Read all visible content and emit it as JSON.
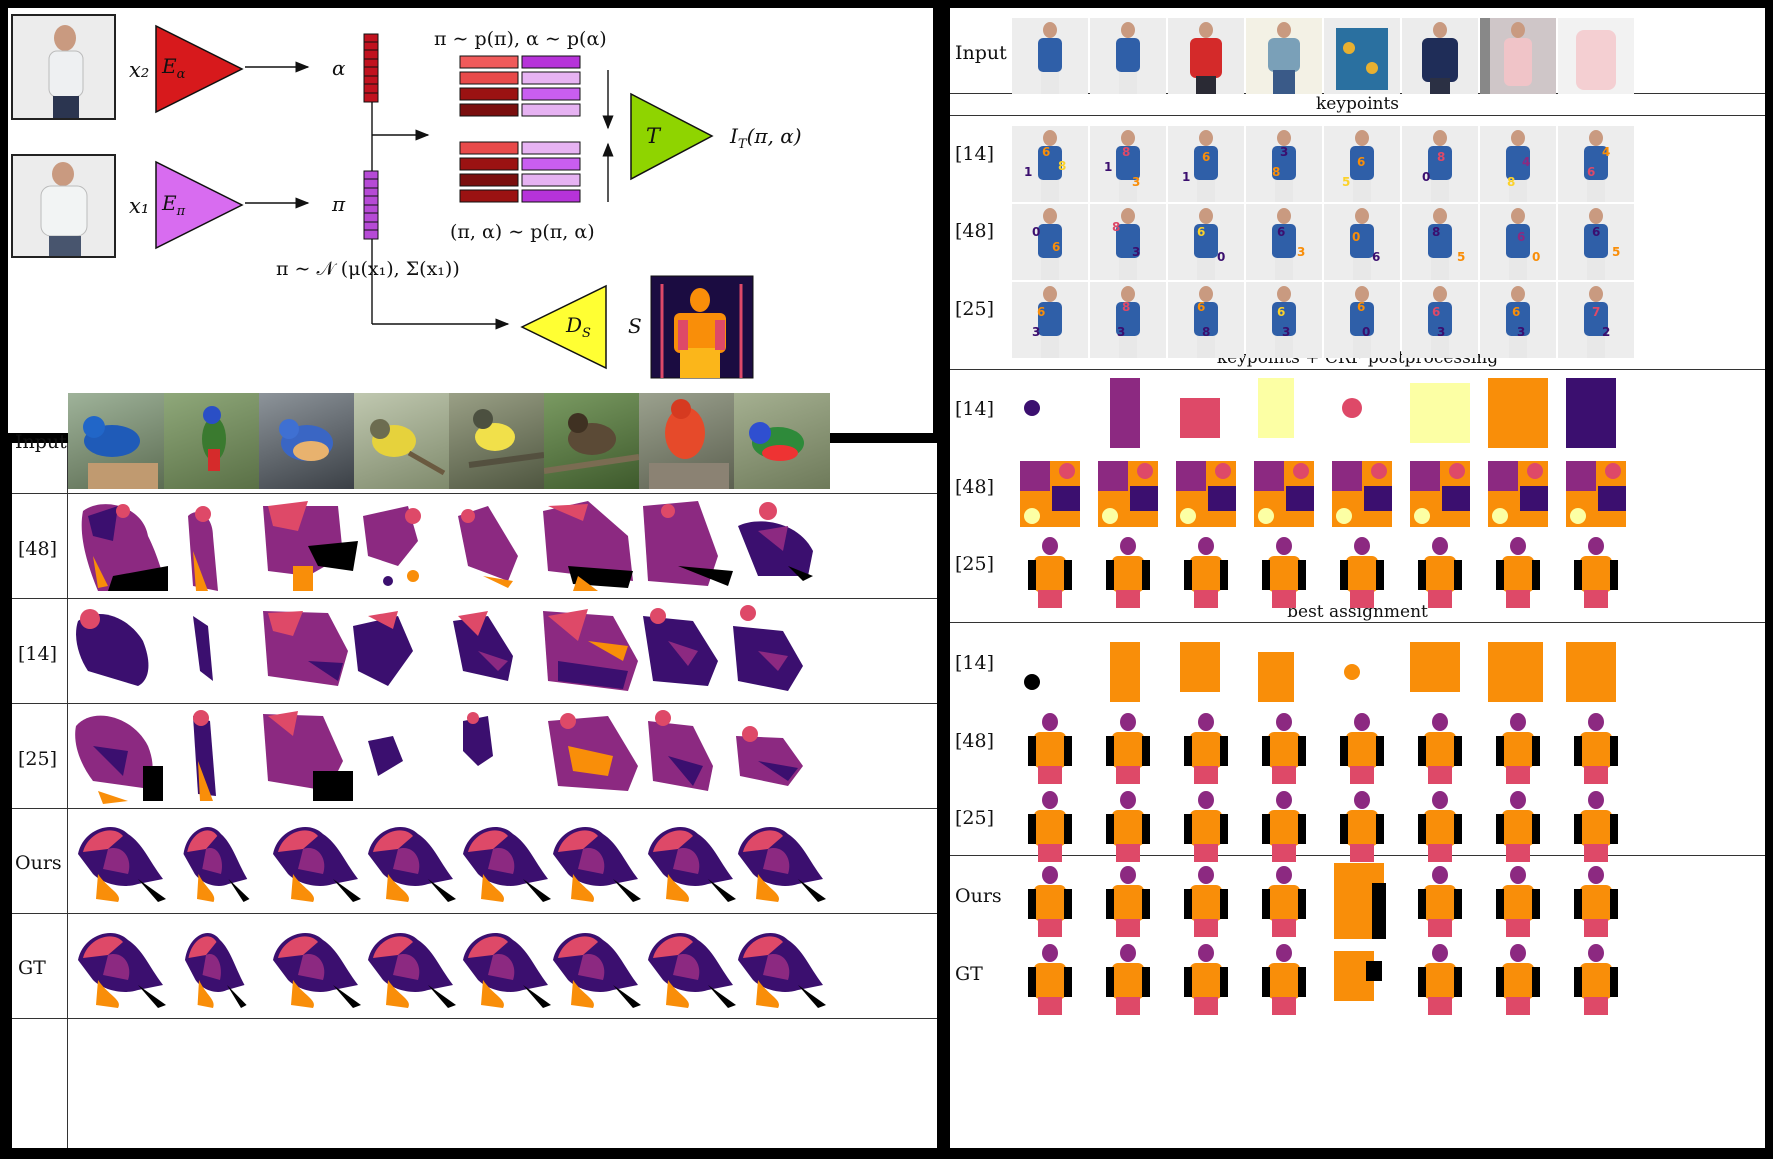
{
  "diagram": {
    "x2": "x₂",
    "x1": "x₁",
    "e_alpha": "E",
    "e_alpha_sub": "α",
    "e_pi": "E",
    "e_pi_sub": "π",
    "alpha": "α",
    "pi": "π",
    "prior": "π ∼ p(π), α ∼ p(α)",
    "joint": "(π, α) ∼ p(π, α)",
    "posterior": "π ∼ 𝒩 (μ(x₁), Σ(x₁))",
    "T": "T",
    "output": "I",
    "output_sub": "T",
    "output_args": "(π, α)",
    "ds": "D",
    "ds_sub": "S",
    "s": "S"
  },
  "birds": {
    "rows": [
      "Input",
      "[48]",
      "[14]",
      "[25]",
      "Ours",
      "GT"
    ]
  },
  "people": {
    "rows_top": [
      "Input",
      "[14]",
      "[48]",
      "[25]"
    ],
    "rows_mid": [
      "[14]",
      "[48]",
      "[25]"
    ],
    "rows_best": [
      "[14]",
      "[48]",
      "[25]"
    ],
    "rows_ours": [
      "Ours",
      "GT"
    ],
    "cap_keypoints": "keypoints",
    "cap_crf": "keypoints + CRF postprocessing",
    "cap_best": "best assignment"
  },
  "colors": {
    "dark_purple": "#3b0f6f",
    "magenta": "#8c2981",
    "salmon": "#de4968",
    "orange": "#f98e09",
    "yellow": "#fcffa4",
    "red_encoder": "#d7191c",
    "violet_encoder": "#d86cf0",
    "green_T": "#8fd400",
    "yellow_D": "#ffff33"
  }
}
